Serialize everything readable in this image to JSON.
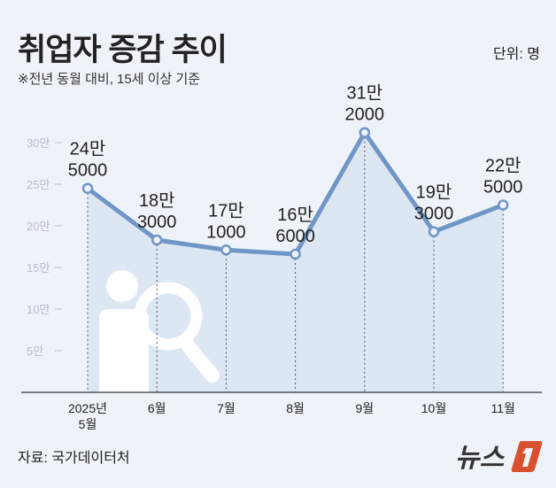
{
  "header": {
    "title": "취업자 증감 추이",
    "unit": "단위: 명",
    "subtitle": "※전년 동월 대비, 15세 이상 기준"
  },
  "footer": {
    "source": "자료: 국가데이터처",
    "logo_text": "뉴스1"
  },
  "colors": {
    "background": "#eef3fa",
    "line": "#7096c6",
    "area": "#dde6f3",
    "logo_accent": "#d9502e"
  },
  "chart_data": {
    "type": "area",
    "title": "취업자 증감 추이",
    "categories": [
      "2025년 5월",
      "6월",
      "7월",
      "8월",
      "9월",
      "10월",
      "11월"
    ],
    "values": [
      245000,
      183000,
      171000,
      166000,
      312000,
      193000,
      225000
    ],
    "data_labels": [
      [
        "24만",
        "5000"
      ],
      [
        "18만",
        "3000"
      ],
      [
        "17만",
        "1000"
      ],
      [
        "16만",
        "6000"
      ],
      [
        "31만",
        "2000"
      ],
      [
        "19만",
        "3000"
      ],
      [
        "22만",
        "5000"
      ]
    ],
    "yticks": [
      {
        "value": 50000,
        "label": "5만"
      },
      {
        "value": 100000,
        "label": "10만"
      },
      {
        "value": 150000,
        "label": "15만"
      },
      {
        "value": 200000,
        "label": "20만"
      },
      {
        "value": 250000,
        "label": "25만"
      },
      {
        "value": 300000,
        "label": "30만"
      }
    ],
    "ylim": [
      0,
      300000
    ],
    "grid": false,
    "legend": "none"
  }
}
